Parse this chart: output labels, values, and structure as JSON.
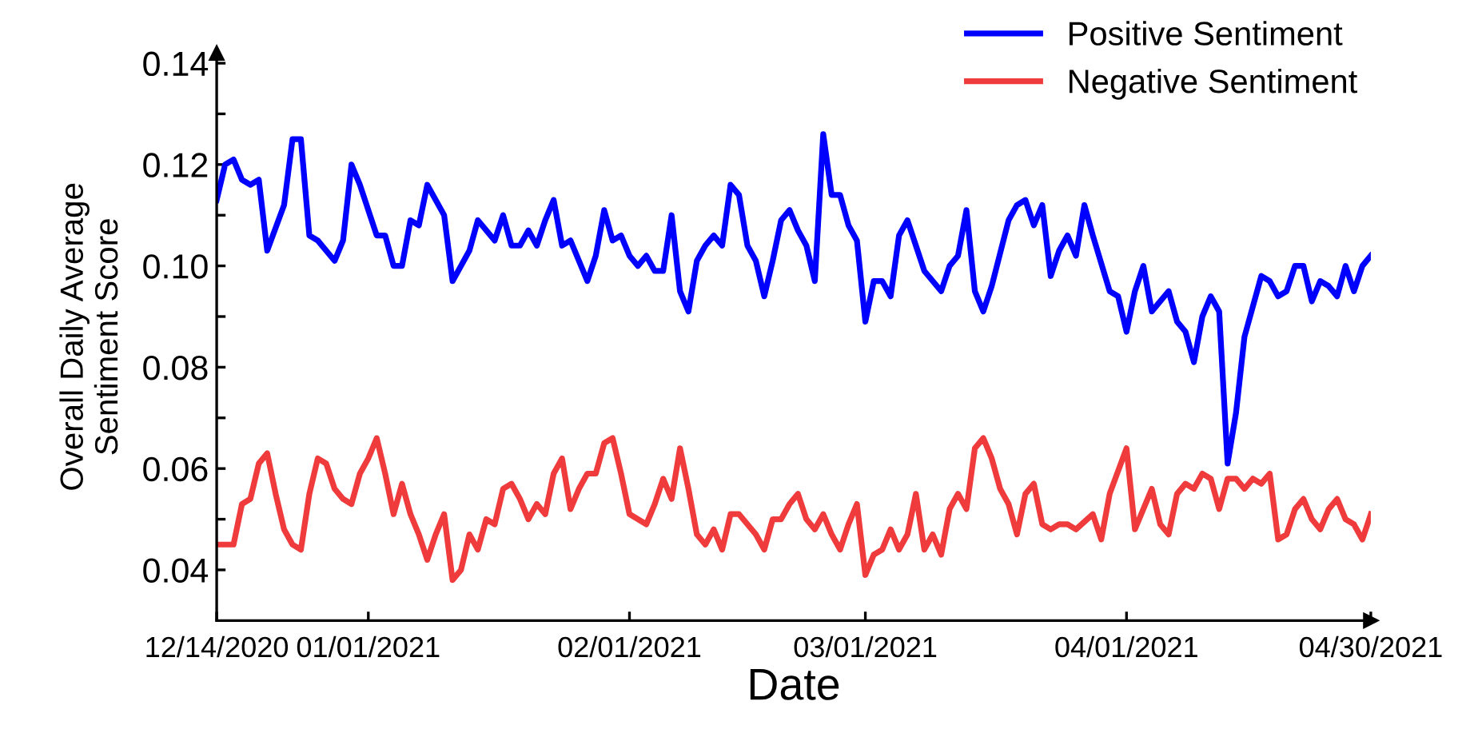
{
  "chart_data": {
    "type": "line",
    "xlabel": "Date",
    "ylabel": "Overall Daily Average\nSentiment Score",
    "xlim": [
      "2020-12-14",
      "2021-04-30"
    ],
    "ylim": [
      0.03,
      0.142
    ],
    "xticks": [
      {
        "value": "2020-12-14",
        "label": "12/14/2020"
      },
      {
        "value": "2021-01-01",
        "label": "01/01/2021"
      },
      {
        "value": "2021-02-01",
        "label": "02/01/2021"
      },
      {
        "value": "2021-03-01",
        "label": "03/01/2021"
      },
      {
        "value": "2021-04-01",
        "label": "04/01/2021"
      },
      {
        "value": "2021-04-30",
        "label": "04/30/2021"
      }
    ],
    "yticks": [
      {
        "value": 0.04,
        "label": "0.04"
      },
      {
        "value": 0.05,
        "label": null
      },
      {
        "value": 0.06,
        "label": "0.06"
      },
      {
        "value": 0.07,
        "label": null
      },
      {
        "value": 0.08,
        "label": "0.08"
      },
      {
        "value": 0.09,
        "label": null
      },
      {
        "value": 0.1,
        "label": "0.10"
      },
      {
        "value": 0.11,
        "label": null
      },
      {
        "value": 0.12,
        "label": "0.12"
      },
      {
        "value": 0.13,
        "label": null
      },
      {
        "value": 0.14,
        "label": "0.14"
      }
    ],
    "grid": false,
    "legend": "top right",
    "marker": "none",
    "line_style": "solid",
    "series": [
      {
        "name": "Positive Sentiment",
        "color": "#0000ff",
        "x": [
          "2020-12-14",
          "2020-12-15",
          "2020-12-16",
          "2020-12-17",
          "2020-12-18",
          "2020-12-19",
          "2020-12-20",
          "2020-12-22",
          "2020-12-23",
          "2020-12-24",
          "2020-12-25",
          "2020-12-26",
          "2020-12-28",
          "2020-12-29",
          "2020-12-30",
          "2020-12-31",
          "2021-01-02",
          "2021-01-03",
          "2021-01-04",
          "2021-01-05",
          "2021-01-06",
          "2021-01-07",
          "2021-01-08",
          "2021-01-10",
          "2021-01-11",
          "2021-01-13",
          "2021-01-14",
          "2021-01-16",
          "2021-01-17",
          "2021-01-18",
          "2021-01-19",
          "2021-01-20",
          "2021-01-21",
          "2021-01-22",
          "2021-01-23",
          "2021-01-24",
          "2021-01-25",
          "2021-01-27",
          "2021-01-28",
          "2021-01-29",
          "2021-01-30",
          "2021-01-31",
          "2021-02-01",
          "2021-02-02",
          "2021-02-03",
          "2021-02-04",
          "2021-02-05",
          "2021-02-06",
          "2021-02-07",
          "2021-02-08",
          "2021-02-09",
          "2021-02-10",
          "2021-02-11",
          "2021-02-12",
          "2021-02-13",
          "2021-02-14",
          "2021-02-15",
          "2021-02-16",
          "2021-02-17",
          "2021-02-18",
          "2021-02-19",
          "2021-02-20",
          "2021-02-21",
          "2021-02-22",
          "2021-02-23",
          "2021-02-24",
          "2021-02-25",
          "2021-02-26",
          "2021-02-27",
          "2021-02-28",
          "2021-03-01",
          "2021-03-02",
          "2021-03-03",
          "2021-03-04",
          "2021-03-05",
          "2021-03-06",
          "2021-03-07",
          "2021-03-08",
          "2021-03-10",
          "2021-03-11",
          "2021-03-12",
          "2021-03-13",
          "2021-03-14",
          "2021-03-15",
          "2021-03-16",
          "2021-03-18",
          "2021-03-19",
          "2021-03-20",
          "2021-03-21",
          "2021-03-22",
          "2021-03-23",
          "2021-03-24",
          "2021-03-25",
          "2021-03-26",
          "2021-03-27",
          "2021-03-28",
          "2021-03-30",
          "2021-03-31",
          "2021-04-01",
          "2021-04-02",
          "2021-04-03",
          "2021-04-04",
          "2021-04-06",
          "2021-04-07",
          "2021-04-08",
          "2021-04-09",
          "2021-04-10",
          "2021-04-11",
          "2021-04-12",
          "2021-04-13",
          "2021-04-14",
          "2021-04-15",
          "2021-04-17",
          "2021-04-18",
          "2021-04-19",
          "2021-04-20",
          "2021-04-21",
          "2021-04-22",
          "2021-04-23",
          "2021-04-24",
          "2021-04-25",
          "2021-04-26",
          "2021-04-27",
          "2021-04-28",
          "2021-04-29",
          "2021-04-30"
        ],
        "values": [
          0.113,
          0.12,
          0.121,
          0.117,
          0.116,
          0.117,
          0.103,
          0.112,
          0.125,
          0.125,
          0.106,
          0.105,
          0.101,
          0.105,
          0.12,
          0.116,
          0.106,
          0.106,
          0.1,
          0.1,
          0.109,
          0.108,
          0.116,
          0.11,
          0.097,
          0.103,
          0.109,
          0.105,
          0.11,
          0.104,
          0.104,
          0.107,
          0.104,
          0.109,
          0.113,
          0.104,
          0.105,
          0.097,
          0.102,
          0.111,
          0.105,
          0.106,
          0.102,
          0.1,
          0.102,
          0.099,
          0.099,
          0.11,
          0.095,
          0.091,
          0.101,
          0.104,
          0.106,
          0.104,
          0.116,
          0.114,
          0.104,
          0.101,
          0.094,
          0.101,
          0.109,
          0.111,
          0.107,
          0.104,
          0.097,
          0.126,
          0.114,
          0.114,
          0.108,
          0.105,
          0.089,
          0.097,
          0.097,
          0.094,
          0.106,
          0.109,
          0.104,
          0.099,
          0.095,
          0.1,
          0.102,
          0.111,
          0.095,
          0.091,
          0.096,
          0.109,
          0.112,
          0.113,
          0.108,
          0.112,
          0.098,
          0.103,
          0.106,
          0.102,
          0.112,
          0.106,
          0.095,
          0.094,
          0.087,
          0.095,
          0.1,
          0.091,
          0.095,
          0.089,
          0.087,
          0.081,
          0.09,
          0.094,
          0.091,
          0.061,
          0.071,
          0.086,
          0.098,
          0.097,
          0.094,
          0.095,
          0.1,
          0.1,
          0.093,
          0.097,
          0.096,
          0.094,
          0.1,
          0.095,
          0.1,
          0.102
        ]
      },
      {
        "name": "Negative Sentiment",
        "color": "#ef3b3b",
        "x": [
          "2020-12-14",
          "2020-12-15",
          "2020-12-16",
          "2020-12-17",
          "2020-12-18",
          "2020-12-19",
          "2020-12-20",
          "2020-12-21",
          "2020-12-22",
          "2020-12-23",
          "2020-12-24",
          "2020-12-25",
          "2020-12-26",
          "2020-12-27",
          "2020-12-28",
          "2020-12-29",
          "2020-12-30",
          "2020-12-31",
          "2021-01-01",
          "2021-01-02",
          "2021-01-03",
          "2021-01-04",
          "2021-01-05",
          "2021-01-06",
          "2021-01-07",
          "2021-01-08",
          "2021-01-09",
          "2021-01-10",
          "2021-01-11",
          "2021-01-12",
          "2021-01-13",
          "2021-01-14",
          "2021-01-15",
          "2021-01-16",
          "2021-01-17",
          "2021-01-18",
          "2021-01-19",
          "2021-01-20",
          "2021-01-21",
          "2021-01-22",
          "2021-01-23",
          "2021-01-24",
          "2021-01-25",
          "2021-01-26",
          "2021-01-27",
          "2021-01-28",
          "2021-01-29",
          "2021-01-30",
          "2021-01-31",
          "2021-02-01",
          "2021-02-03",
          "2021-02-04",
          "2021-02-05",
          "2021-02-06",
          "2021-02-07",
          "2021-02-08",
          "2021-02-09",
          "2021-02-10",
          "2021-02-11",
          "2021-02-12",
          "2021-02-13",
          "2021-02-14",
          "2021-02-16",
          "2021-02-17",
          "2021-02-18",
          "2021-02-19",
          "2021-02-20",
          "2021-02-21",
          "2021-02-22",
          "2021-02-23",
          "2021-02-24",
          "2021-02-25",
          "2021-02-26",
          "2021-02-27",
          "2021-02-28",
          "2021-03-01",
          "2021-03-02",
          "2021-03-03",
          "2021-03-04",
          "2021-03-05",
          "2021-03-06",
          "2021-03-07",
          "2021-03-08",
          "2021-03-09",
          "2021-03-10",
          "2021-03-11",
          "2021-03-12",
          "2021-03-13",
          "2021-03-14",
          "2021-03-15",
          "2021-03-16",
          "2021-03-17",
          "2021-03-18",
          "2021-03-19",
          "2021-03-20",
          "2021-03-21",
          "2021-03-22",
          "2021-03-23",
          "2021-03-24",
          "2021-03-25",
          "2021-03-26",
          "2021-03-28",
          "2021-03-29",
          "2021-03-30",
          "2021-04-01",
          "2021-04-02",
          "2021-04-04",
          "2021-04-05",
          "2021-04-06",
          "2021-04-07",
          "2021-04-08",
          "2021-04-09",
          "2021-04-10",
          "2021-04-11",
          "2021-04-12",
          "2021-04-13",
          "2021-04-14",
          "2021-04-15",
          "2021-04-16",
          "2021-04-17",
          "2021-04-18",
          "2021-04-19",
          "2021-04-20",
          "2021-04-21",
          "2021-04-22",
          "2021-04-23",
          "2021-04-24",
          "2021-04-25",
          "2021-04-26",
          "2021-04-27",
          "2021-04-28",
          "2021-04-29",
          "2021-04-30"
        ],
        "values": [
          0.045,
          0.045,
          0.045,
          0.053,
          0.054,
          0.061,
          0.063,
          0.055,
          0.048,
          0.045,
          0.044,
          0.055,
          0.062,
          0.061,
          0.056,
          0.054,
          0.053,
          0.059,
          0.062,
          0.066,
          0.059,
          0.051,
          0.057,
          0.051,
          0.047,
          0.042,
          0.047,
          0.051,
          0.038,
          0.04,
          0.047,
          0.044,
          0.05,
          0.049,
          0.056,
          0.057,
          0.054,
          0.05,
          0.053,
          0.051,
          0.059,
          0.062,
          0.052,
          0.056,
          0.059,
          0.059,
          0.065,
          0.066,
          0.059,
          0.051,
          0.049,
          0.053,
          0.058,
          0.054,
          0.064,
          0.056,
          0.047,
          0.045,
          0.048,
          0.044,
          0.051,
          0.051,
          0.047,
          0.044,
          0.05,
          0.05,
          0.053,
          0.055,
          0.05,
          0.048,
          0.051,
          0.047,
          0.044,
          0.049,
          0.053,
          0.039,
          0.043,
          0.044,
          0.048,
          0.044,
          0.047,
          0.055,
          0.044,
          0.047,
          0.043,
          0.052,
          0.055,
          0.052,
          0.064,
          0.066,
          0.062,
          0.056,
          0.053,
          0.047,
          0.055,
          0.057,
          0.049,
          0.048,
          0.049,
          0.049,
          0.048,
          0.051,
          0.046,
          0.055,
          0.064,
          0.048,
          0.056,
          0.049,
          0.047,
          0.055,
          0.057,
          0.056,
          0.059,
          0.058,
          0.052,
          0.058,
          0.058,
          0.056,
          0.058,
          0.057,
          0.059,
          0.046,
          0.047,
          0.052,
          0.054,
          0.05,
          0.048,
          0.052,
          0.054,
          0.05,
          0.049,
          0.046,
          0.051
        ]
      }
    ]
  }
}
